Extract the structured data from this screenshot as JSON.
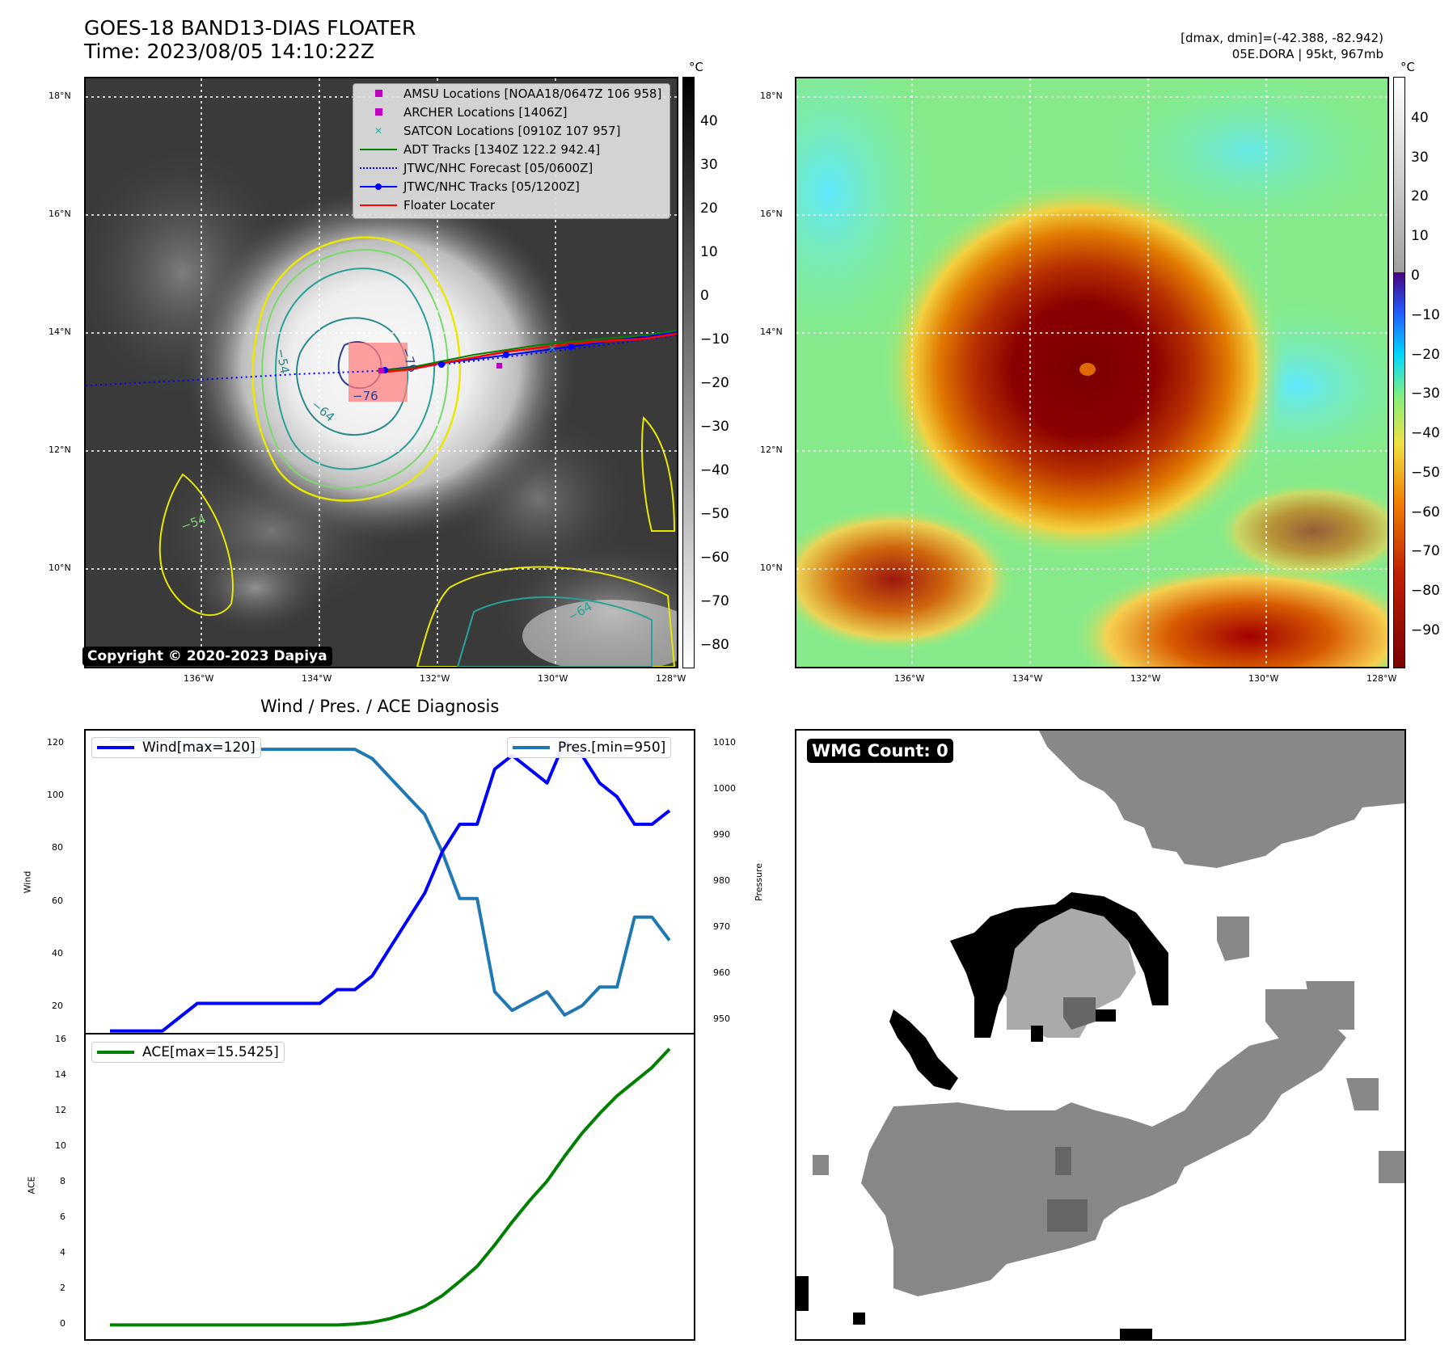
{
  "header": {
    "title_line1": "GOES-18 BAND13-DIAS FLOATER",
    "title_line2": "Time: 2023/08/05 14:10:22Z",
    "dmax_line": "[dmax, dmin]=(-42.388, -82.942)",
    "storm_line": "05E.DORA | 95kt, 967mb"
  },
  "colorbar": {
    "unit": "°C",
    "left_ticks": [
      "40",
      "30",
      "20",
      "10",
      "0",
      "−10",
      "−20",
      "−30",
      "−40",
      "−50",
      "−60",
      "−70",
      "−80"
    ],
    "right_ticks": [
      "40",
      "30",
      "20",
      "10",
      "0",
      "−10",
      "−20",
      "−30",
      "−40",
      "−50",
      "−60",
      "−70",
      "−80",
      "−90"
    ]
  },
  "map": {
    "lat_labels": [
      "18°N",
      "16°N",
      "14°N",
      "12°N",
      "10°N"
    ],
    "lon_labels": [
      "136°W",
      "134°W",
      "132°W",
      "130°W",
      "128°W"
    ],
    "copyright": "Copyright © 2020-2023 Dapiya",
    "contour_labels": [
      "−64",
      "−54",
      "−64",
      "−76",
      "−76",
      "−54",
      "−54",
      "−64"
    ],
    "legend": [
      {
        "label": "AMSU Locations [NOAA18/0647Z 106 958]",
        "color": "#c000c0",
        "marker": "square"
      },
      {
        "label": "ARCHER Locations [1406Z]",
        "color": "#c000c0",
        "marker": "square"
      },
      {
        "label": "SATCON Locations [0910Z 107 957]",
        "color": "#20b0b0",
        "marker": "x"
      },
      {
        "label": "ADT Tracks [1340Z 122.2 942.4]",
        "color": "#008000",
        "marker": "line"
      },
      {
        "label": "JTWC/NHC Forecast [05/0600Z]",
        "color": "#0000ff",
        "marker": "dotted"
      },
      {
        "label": "JTWC/NHC Tracks [05/1200Z]",
        "color": "#0000ff",
        "marker": "line-dot"
      },
      {
        "label": "Floater Locater",
        "color": "#ff0000",
        "marker": "line"
      }
    ]
  },
  "diagnosis": {
    "title": "Wind / Pres. / ACE Diagnosis",
    "wind_legend": "Wind[max=120]",
    "pres_legend": "Pres.[min=950]",
    "ace_legend": "ACE[max=15.5425]",
    "wind_ylabel": "Wind",
    "pres_ylabel": "Pressure",
    "ace_ylabel": "ACE",
    "wind_ticks": [
      "120",
      "100",
      "80",
      "60",
      "40",
      "20"
    ],
    "pres_ticks": [
      "1010",
      "1000",
      "990",
      "980",
      "970",
      "960",
      "950"
    ],
    "ace_ticks": [
      "16",
      "14",
      "12",
      "10",
      "8",
      "6",
      "4",
      "2",
      "0"
    ]
  },
  "wmg": {
    "label": "WMG Count: 0"
  },
  "chart_data": [
    {
      "type": "line",
      "title": "Wind / Pres. / ACE Diagnosis",
      "series": [
        {
          "name": "Wind[max=120]",
          "color": "#0000ff",
          "axis": "left",
          "ylim": [
            14,
            124
          ],
          "values": [
            15,
            15,
            15,
            15,
            20,
            25,
            25,
            25,
            25,
            25,
            25,
            25,
            25,
            30,
            30,
            35,
            45,
            55,
            65,
            80,
            90,
            90,
            110,
            115,
            110,
            105,
            120,
            115,
            105,
            100,
            90,
            90,
            95
          ]
        },
        {
          "name": "Pres.[min=950]",
          "color": "#1f77b4",
          "axis": "right",
          "ylim": [
            947,
            1012
          ],
          "values": [
            1010,
            1010,
            1010,
            1010,
            1009,
            1009,
            1009,
            1008,
            1008,
            1008,
            1008,
            1008,
            1008,
            1008,
            1008,
            1006,
            1002,
            998,
            994,
            986,
            976,
            976,
            956,
            952,
            954,
            956,
            951,
            953,
            957,
            957,
            972,
            972,
            967
          ]
        }
      ]
    },
    {
      "type": "line",
      "series": [
        {
          "name": "ACE[max=15.5425]",
          "color": "#008000",
          "ylim": [
            -0.8,
            16.4
          ],
          "values": [
            0,
            0,
            0,
            0,
            0,
            0,
            0,
            0,
            0,
            0,
            0,
            0,
            0,
            0,
            0.05,
            0.15,
            0.35,
            0.65,
            1.05,
            1.65,
            2.45,
            3.3,
            4.5,
            5.8,
            7.0,
            8.1,
            9.5,
            10.8,
            11.9,
            12.9,
            13.7,
            14.5,
            15.5425
          ]
        }
      ]
    }
  ]
}
